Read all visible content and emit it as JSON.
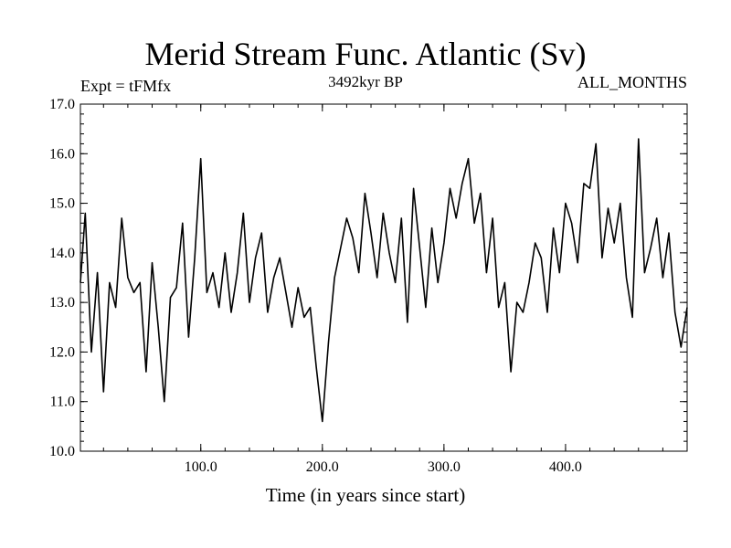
{
  "chart_data": {
    "type": "line",
    "title": "Merid Stream Func. Atlantic (Sv)",
    "subtitle": "3492kyr BP",
    "experiment_label": "Expt = tFMfx",
    "period_label": "ALL_MONTHS",
    "xlabel": "Time (in years since start)",
    "ylabel": "",
    "xlim": [
      1,
      500
    ],
    "ylim": [
      10.0,
      17.0
    ],
    "x_ticks": [
      100,
      200,
      300,
      400
    ],
    "x_tick_labels": [
      "100.0",
      "200.0",
      "300.0",
      "400.0"
    ],
    "y_ticks": [
      10,
      11,
      12,
      13,
      14,
      15,
      16,
      17
    ],
    "y_tick_labels": [
      "10.0",
      "11.0",
      "12.0",
      "13.0",
      "14.0",
      "15.0",
      "16.0",
      "17.0"
    ],
    "grid": false,
    "series": [
      {
        "name": "Merid Stream Func. Atlantic",
        "x": [
          1,
          5,
          10,
          15,
          20,
          25,
          30,
          35,
          40,
          45,
          50,
          55,
          60,
          65,
          70,
          75,
          80,
          85,
          90,
          95,
          100,
          105,
          110,
          115,
          120,
          125,
          130,
          135,
          140,
          145,
          150,
          155,
          160,
          165,
          170,
          175,
          180,
          185,
          190,
          195,
          200,
          205,
          210,
          215,
          220,
          225,
          230,
          235,
          240,
          245,
          250,
          255,
          260,
          265,
          270,
          275,
          280,
          285,
          290,
          295,
          300,
          305,
          310,
          315,
          320,
          325,
          330,
          335,
          340,
          345,
          350,
          355,
          360,
          365,
          370,
          375,
          380,
          385,
          390,
          395,
          400,
          405,
          410,
          415,
          420,
          425,
          430,
          435,
          440,
          445,
          450,
          455,
          460,
          465,
          470,
          475,
          480,
          485,
          490,
          495,
          500
        ],
        "values": [
          13.4,
          14.8,
          12.0,
          13.6,
          11.2,
          13.4,
          12.9,
          14.7,
          13.5,
          13.2,
          13.4,
          11.6,
          13.8,
          12.5,
          11.0,
          13.1,
          13.3,
          14.6,
          12.3,
          13.9,
          15.9,
          13.2,
          13.6,
          12.9,
          14.0,
          12.8,
          13.6,
          14.8,
          13.0,
          13.9,
          14.4,
          12.8,
          13.5,
          13.9,
          13.2,
          12.5,
          13.3,
          12.7,
          12.9,
          11.7,
          10.6,
          12.2,
          13.5,
          14.1,
          14.7,
          14.3,
          13.6,
          15.2,
          14.4,
          13.5,
          14.8,
          14.0,
          13.4,
          14.7,
          12.6,
          15.3,
          14.1,
          12.9,
          14.5,
          13.4,
          14.2,
          15.3,
          14.7,
          15.4,
          15.9,
          14.6,
          15.2,
          13.6,
          14.7,
          12.9,
          13.4,
          11.6,
          13.0,
          12.8,
          13.4,
          14.2,
          13.9,
          12.8,
          14.5,
          13.6,
          15.0,
          14.6,
          13.8,
          15.4,
          15.3,
          16.2,
          13.9,
          14.9,
          14.2,
          15.0,
          13.5,
          12.7,
          16.3,
          13.6,
          14.1,
          14.7,
          13.5,
          14.4,
          12.8,
          12.1,
          12.9
        ]
      }
    ]
  }
}
